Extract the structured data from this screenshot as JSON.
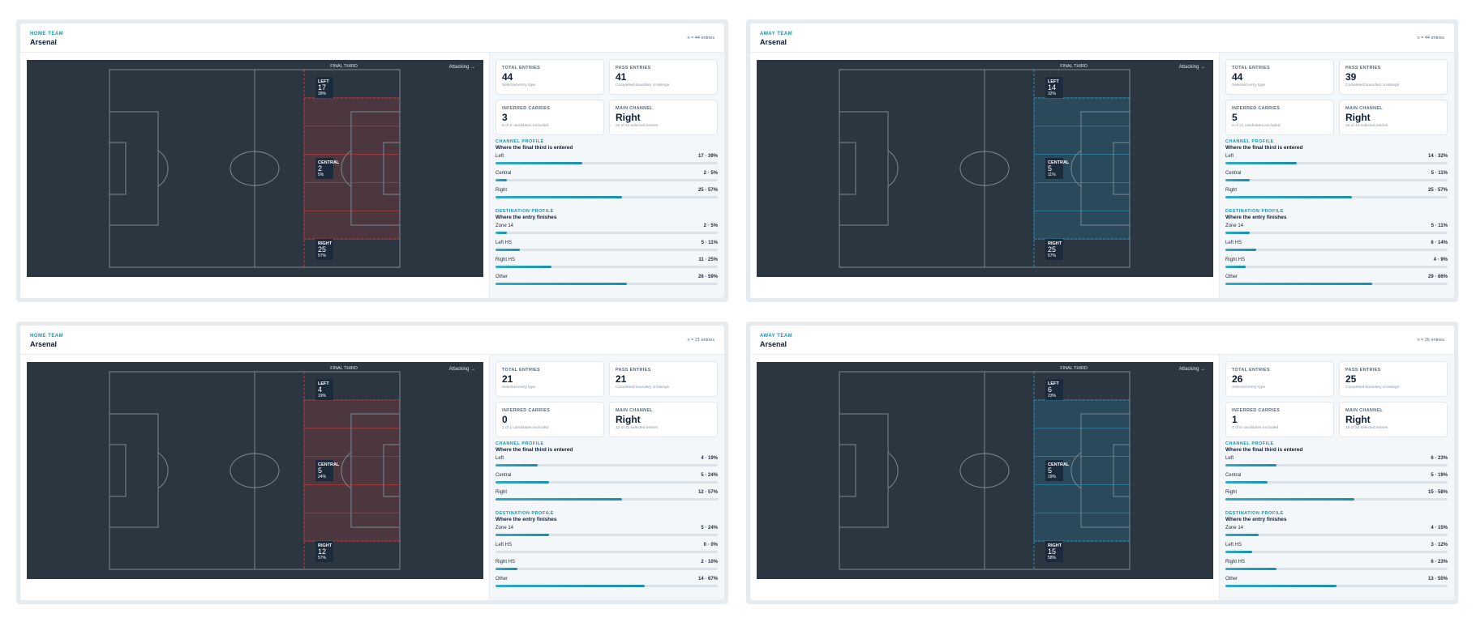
{
  "panels": [
    {
      "eyebrow": "HOME TEAM",
      "team": "Arsenal",
      "entries_label": "n = 44 entries",
      "final_third_label": "FINAL THIRD",
      "attacking_label": "Attacking →",
      "highlight_color": "#c23b3b",
      "zones": [
        {
          "name": "LEFT",
          "count": "17",
          "pct": "39%"
        },
        {
          "name": "CENTRAL",
          "count": "2",
          "pct": "5%"
        },
        {
          "name": "RIGHT",
          "count": "25",
          "pct": "57%"
        }
      ],
      "kpis": [
        {
          "label": "TOTAL ENTRIES",
          "value": "44",
          "sub": "Selected entry type"
        },
        {
          "label": "PASS ENTRIES",
          "value": "41",
          "sub": "Completed boundary crossings"
        },
        {
          "label": "INFERRED CARRIES",
          "value": "3",
          "sub": "6 of 9 candidates excluded"
        },
        {
          "label": "MAIN CHANNEL",
          "value": "Right",
          "sub": "25 of 44 selected entries"
        }
      ],
      "channel_title": "CHANNEL PROFILE",
      "channel_sub": "Where the final third is entered",
      "channel": [
        {
          "label": "Left",
          "value": "17 · 39%",
          "share": 0.39
        },
        {
          "label": "Central",
          "value": "2 · 5%",
          "share": 0.05
        },
        {
          "label": "Right",
          "value": "25 · 57%",
          "share": 0.57
        }
      ],
      "dest_title": "DESTINATION PROFILE",
      "dest_sub": "Where the entry finishes",
      "destination": [
        {
          "label": "Zone 14",
          "value": "2 · 5%",
          "share": 0.05
        },
        {
          "label": "Left HS",
          "value": "5 · 11%",
          "share": 0.11
        },
        {
          "label": "Right HS",
          "value": "11 · 25%",
          "share": 0.25
        },
        {
          "label": "Other",
          "value": "26 · 59%",
          "share": 0.59
        }
      ]
    },
    {
      "eyebrow": "AWAY TEAM",
      "team": "Arsenal",
      "entries_label": "n = 44 entries",
      "final_third_label": "FINAL THIRD",
      "attacking_label": "Attacking →",
      "highlight_color": "#2a8fb5",
      "zones": [
        {
          "name": "LEFT",
          "count": "14",
          "pct": "32%"
        },
        {
          "name": "CENTRAL",
          "count": "5",
          "pct": "11%"
        },
        {
          "name": "RIGHT",
          "count": "25",
          "pct": "57%"
        }
      ],
      "kpis": [
        {
          "label": "TOTAL ENTRIES",
          "value": "44",
          "sub": "Selected entry type"
        },
        {
          "label": "PASS ENTRIES",
          "value": "39",
          "sub": "Completed boundary crossings"
        },
        {
          "label": "INFERRED CARRIES",
          "value": "5",
          "sub": "6 of 11 candidates excluded"
        },
        {
          "label": "MAIN CHANNEL",
          "value": "Right",
          "sub": "25 of 44 selected entries"
        }
      ],
      "channel_title": "CHANNEL PROFILE",
      "channel_sub": "Where the final third is entered",
      "channel": [
        {
          "label": "Left",
          "value": "14 · 32%",
          "share": 0.32
        },
        {
          "label": "Central",
          "value": "5 · 11%",
          "share": 0.11
        },
        {
          "label": "Right",
          "value": "25 · 57%",
          "share": 0.57
        }
      ],
      "dest_title": "DESTINATION PROFILE",
      "dest_sub": "Where the entry finishes",
      "destination": [
        {
          "label": "Zone 14",
          "value": "5 · 11%",
          "share": 0.11
        },
        {
          "label": "Left HS",
          "value": "6 · 14%",
          "share": 0.14
        },
        {
          "label": "Right HS",
          "value": "4 · 9%",
          "share": 0.09
        },
        {
          "label": "Other",
          "value": "29 · 66%",
          "share": 0.66
        }
      ]
    },
    {
      "eyebrow": "HOME TEAM",
      "team": "Arsenal",
      "entries_label": "n = 21 entries",
      "final_third_label": "FINAL THIRD",
      "attacking_label": "Attacking →",
      "highlight_color": "#c23b3b",
      "zones": [
        {
          "name": "LEFT",
          "count": "4",
          "pct": "19%"
        },
        {
          "name": "CENTRAL",
          "count": "5",
          "pct": "24%"
        },
        {
          "name": "RIGHT",
          "count": "12",
          "pct": "57%"
        }
      ],
      "kpis": [
        {
          "label": "TOTAL ENTRIES",
          "value": "21",
          "sub": "Selected entry type"
        },
        {
          "label": "PASS ENTRIES",
          "value": "21",
          "sub": "Completed boundary crossings"
        },
        {
          "label": "INFERRED CARRIES",
          "value": "0",
          "sub": "1 of 1 candidates excluded"
        },
        {
          "label": "MAIN CHANNEL",
          "value": "Right",
          "sub": "12 of 21 selected entries"
        }
      ],
      "channel_title": "CHANNEL PROFILE",
      "channel_sub": "Where the final third is entered",
      "channel": [
        {
          "label": "Left",
          "value": "4 · 19%",
          "share": 0.19
        },
        {
          "label": "Central",
          "value": "5 · 24%",
          "share": 0.24
        },
        {
          "label": "Right",
          "value": "12 · 57%",
          "share": 0.57
        }
      ],
      "dest_title": "DESTINATION PROFILE",
      "dest_sub": "Where the entry finishes",
      "destination": [
        {
          "label": "Zone 14",
          "value": "5 · 24%",
          "share": 0.24
        },
        {
          "label": "Left HS",
          "value": "0 · 0%",
          "share": 0.0
        },
        {
          "label": "Right HS",
          "value": "2 · 10%",
          "share": 0.1
        },
        {
          "label": "Other",
          "value": "14 · 67%",
          "share": 0.67
        }
      ]
    },
    {
      "eyebrow": "AWAY TEAM",
      "team": "Arsenal",
      "entries_label": "n = 26 entries",
      "final_third_label": "FINAL THIRD",
      "attacking_label": "Attacking →",
      "highlight_color": "#2a8fb5",
      "zones": [
        {
          "name": "LEFT",
          "count": "6",
          "pct": "23%"
        },
        {
          "name": "CENTRAL",
          "count": "5",
          "pct": "19%"
        },
        {
          "name": "RIGHT",
          "count": "15",
          "pct": "58%"
        }
      ],
      "kpis": [
        {
          "label": "TOTAL ENTRIES",
          "value": "26",
          "sub": "Selected entry type"
        },
        {
          "label": "PASS ENTRIES",
          "value": "25",
          "sub": "Completed boundary crossings"
        },
        {
          "label": "INFERRED CARRIES",
          "value": "1",
          "sub": "4 of 5 candidates excluded"
        },
        {
          "label": "MAIN CHANNEL",
          "value": "Right",
          "sub": "15 of 26 selected entries"
        }
      ],
      "channel_title": "CHANNEL PROFILE",
      "channel_sub": "Where the final third is entered",
      "channel": [
        {
          "label": "Left",
          "value": "6 · 23%",
          "share": 0.23
        },
        {
          "label": "Central",
          "value": "5 · 19%",
          "share": 0.19
        },
        {
          "label": "Right",
          "value": "15 · 58%",
          "share": 0.58
        }
      ],
      "dest_title": "DESTINATION PROFILE",
      "dest_sub": "Where the entry finishes",
      "destination": [
        {
          "label": "Zone 14",
          "value": "4 · 15%",
          "share": 0.15
        },
        {
          "label": "Left HS",
          "value": "3 · 12%",
          "share": 0.12
        },
        {
          "label": "Right HS",
          "value": "6 · 23%",
          "share": 0.23
        },
        {
          "label": "Other",
          "value": "13 · 50%",
          "share": 0.5
        }
      ]
    }
  ]
}
